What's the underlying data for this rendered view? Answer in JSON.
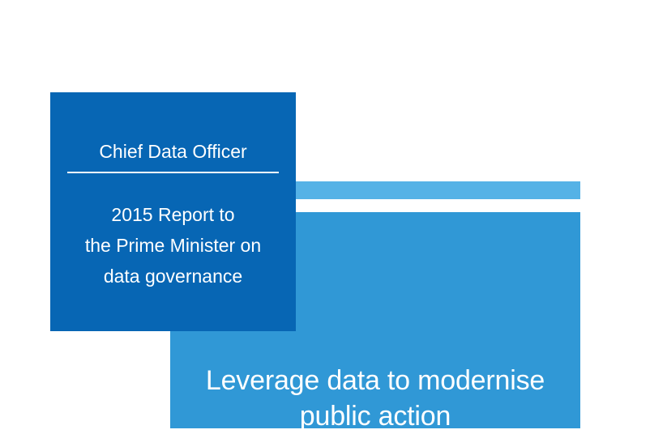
{
  "colors": {
    "card_bg": "#0766b4",
    "panel_bg": "#3098d6",
    "bar_bg": "#55b2e6",
    "text": "#ffffff"
  },
  "card": {
    "title": "Chief Data Officer",
    "subtitle_lines": [
      "2015 Report to",
      "the Prime Minister on",
      "data governance"
    ]
  },
  "panel": {
    "headline_lines": [
      "Leverage data to modernise",
      "public action"
    ]
  }
}
